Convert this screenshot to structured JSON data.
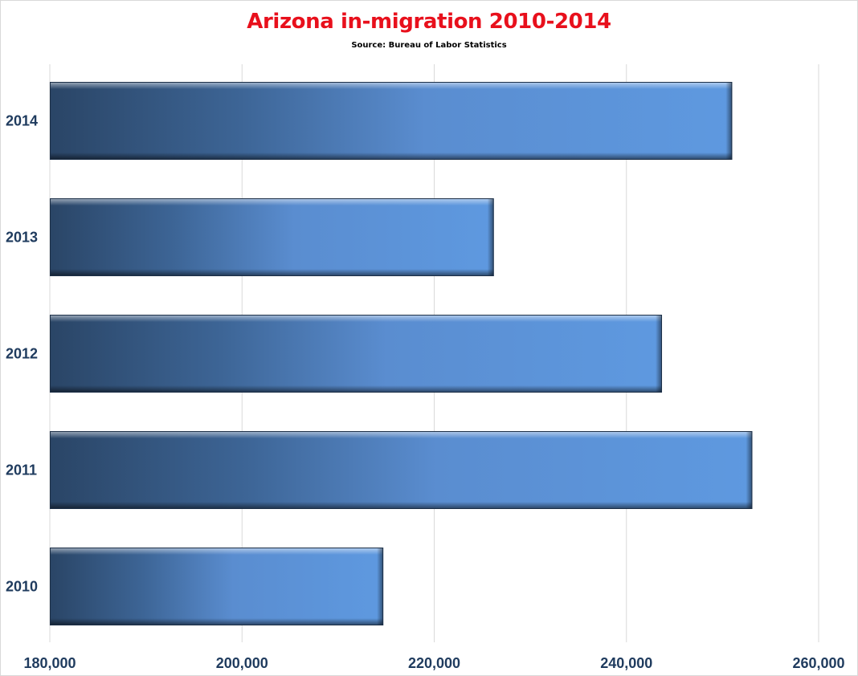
{
  "chart_data": {
    "type": "bar",
    "orientation": "horizontal",
    "title": "Arizona in-migration 2010-2014",
    "subtitle": "Source: Bureau of Labor Statistics",
    "categories": [
      "2014",
      "2013",
      "2012",
      "2011",
      "2010"
    ],
    "values": [
      251000,
      226200,
      243700,
      253100,
      214700
    ],
    "xlim": [
      180000,
      260000
    ],
    "x_ticks": [
      180000,
      200000,
      220000,
      240000,
      260000
    ],
    "x_tick_labels": [
      "180,000",
      "200,000",
      "220,000",
      "240,000",
      "260,000"
    ],
    "xlabel": "",
    "ylabel": "",
    "grid": "vertical",
    "legend": "none",
    "colors": {
      "bar_dark": "#2a4566",
      "bar_light": "#5e99e0",
      "title": "#e8101c",
      "axis_label": "#1f3b5e",
      "grid": "#d9d9d9"
    }
  }
}
